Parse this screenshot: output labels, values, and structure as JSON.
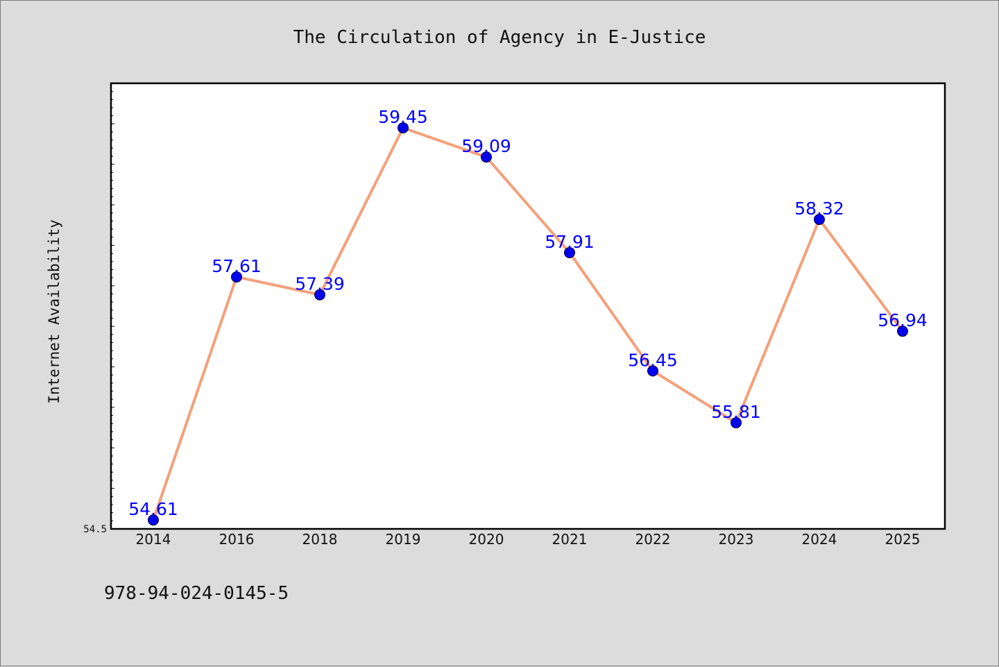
{
  "chart_data": {
    "type": "line",
    "title": "The Circulation of Agency in E-Justice",
    "xlabel": "",
    "ylabel": "Internet Availability",
    "categories": [
      "2014",
      "2016",
      "2018",
      "2019",
      "2020",
      "2021",
      "2022",
      "2023",
      "2024",
      "2025"
    ],
    "series": [
      {
        "values": [
          54.61,
          57.61,
          57.39,
          59.45,
          59.09,
          57.91,
          56.45,
          55.81,
          58.32,
          56.94
        ]
      }
    ],
    "data_labels": [
      "54.61",
      "57.61",
      "57.39",
      "59.45",
      "59.09",
      "57.91",
      "56.45",
      "55.81",
      "58.32",
      "56.94"
    ],
    "y_tick_labels": [
      "54.5"
    ],
    "ylim": [
      54.5,
      60.0
    ],
    "grid": false,
    "legend": "none",
    "colors": {
      "line": "#f4a07a",
      "marker": "#0000ee",
      "marker_edge": "#000033",
      "data_label": "#0000ff",
      "background": "#dcdcdc",
      "plot_bg": "#ffffff"
    }
  },
  "footer_note": "978-94-024-0145-5"
}
